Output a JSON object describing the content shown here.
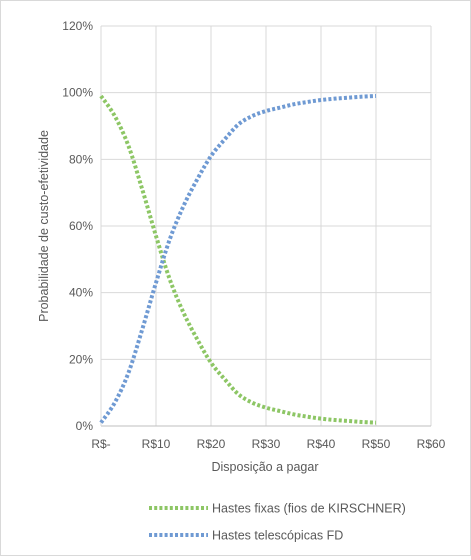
{
  "chart_data": {
    "type": "line",
    "title": "",
    "xlabel": "Disposição a pagar",
    "ylabel": "Probabilidade de custo-efetividade",
    "x_ticks": [
      "R$-",
      "R$10",
      "R$20",
      "R$30",
      "R$40",
      "R$50",
      "R$60"
    ],
    "y_ticks": [
      "0%",
      "20%",
      "40%",
      "60%",
      "80%",
      "100%",
      "120%"
    ],
    "xlim": [
      0,
      60
    ],
    "ylim": [
      0,
      1.2
    ],
    "grid": "vertical and horizontal",
    "legend_position": "bottom",
    "x": [
      0,
      2.5,
      5,
      7.5,
      10,
      12.5,
      15,
      17.5,
      20,
      22.5,
      25,
      27.5,
      30,
      32.5,
      35,
      37.5,
      40,
      42.5,
      45,
      47.5,
      50
    ],
    "series": [
      {
        "name": "Hastes fixas (fios de KIRSCHNER)",
        "color": "#8dc665",
        "values": [
          0.99,
          0.93,
          0.84,
          0.71,
          0.57,
          0.44,
          0.34,
          0.26,
          0.19,
          0.14,
          0.095,
          0.07,
          0.055,
          0.045,
          0.035,
          0.028,
          0.022,
          0.018,
          0.015,
          0.012,
          0.01
        ]
      },
      {
        "name": "Hastes telescópicas FD",
        "color": "#6f9ad3",
        "values": [
          0.01,
          0.07,
          0.16,
          0.29,
          0.43,
          0.56,
          0.66,
          0.74,
          0.81,
          0.86,
          0.905,
          0.93,
          0.945,
          0.955,
          0.965,
          0.972,
          0.978,
          0.982,
          0.985,
          0.988,
          0.99
        ]
      }
    ]
  }
}
